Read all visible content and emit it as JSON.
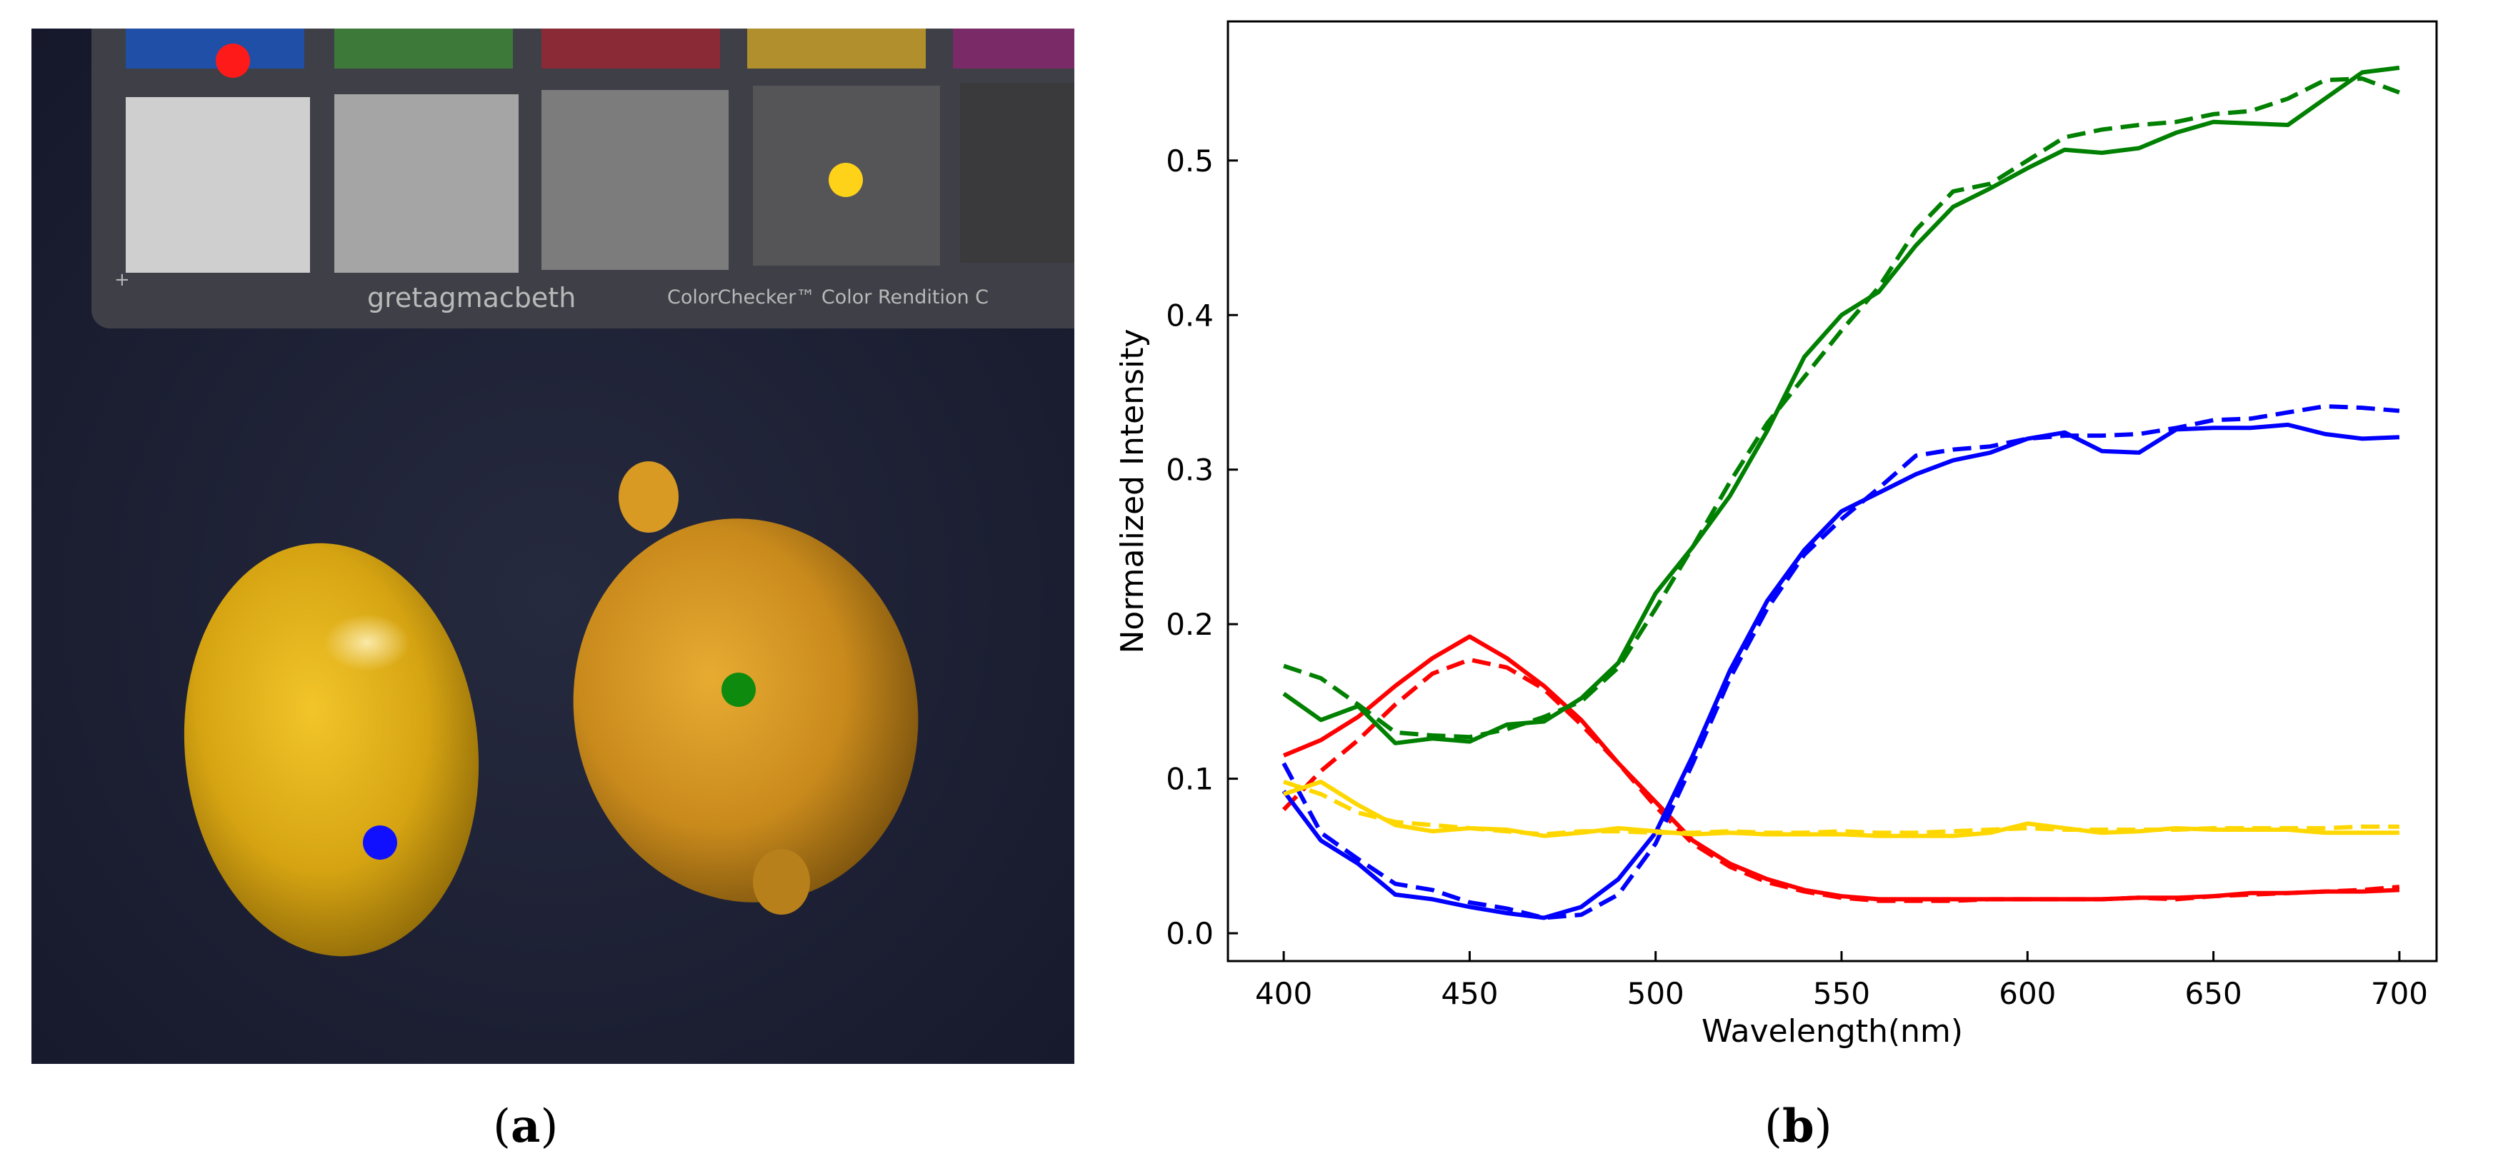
{
  "panels": {
    "a": {
      "caption": "a",
      "chart_brand": "gretagmacbeth",
      "chart_name": "ColorChecker™ Color Rendition C",
      "markers": [
        {
          "name": "red-marker",
          "color": "#ff1a1a"
        },
        {
          "name": "yellow-marker",
          "color": "#ffd21a"
        },
        {
          "name": "blue-marker",
          "color": "#1010ff"
        },
        {
          "name": "green-marker",
          "color": "#0e8a0e"
        }
      ]
    },
    "b": {
      "caption": "b"
    }
  },
  "chart_data": {
    "type": "line",
    "title": "",
    "xlabel": "Wavelength(nm)",
    "ylabel": "Normalized Intensity",
    "xlim": [
      385,
      710
    ],
    "ylim": [
      -0.018,
      0.59
    ],
    "x_ticks": [
      400,
      450,
      500,
      550,
      600,
      650,
      700
    ],
    "y_ticks": [
      0.0,
      0.1,
      0.2,
      0.3,
      0.4,
      0.5
    ],
    "y_tick_labels": [
      "0.0",
      "0.1",
      "0.2",
      "0.3",
      "0.4",
      "0.5"
    ],
    "x": [
      400,
      410,
      420,
      430,
      440,
      450,
      460,
      470,
      480,
      490,
      500,
      510,
      520,
      530,
      540,
      550,
      560,
      570,
      580,
      590,
      600,
      610,
      620,
      630,
      640,
      650,
      660,
      670,
      680,
      690,
      700
    ],
    "series": [
      {
        "name": "red solid",
        "color": "#ff0000",
        "style": "solid",
        "values": [
          0.115,
          0.125,
          0.14,
          0.16,
          0.178,
          0.192,
          0.178,
          0.16,
          0.138,
          0.11,
          0.085,
          0.06,
          0.045,
          0.035,
          0.028,
          0.024,
          0.022,
          0.022,
          0.022,
          0.022,
          0.022,
          0.022,
          0.022,
          0.023,
          0.023,
          0.024,
          0.026,
          0.026,
          0.027,
          0.027,
          0.028
        ]
      },
      {
        "name": "red dashed",
        "color": "#ff0000",
        "style": "dashed",
        "values": [
          0.08,
          0.105,
          0.125,
          0.148,
          0.168,
          0.177,
          0.172,
          0.158,
          0.135,
          0.11,
          0.082,
          0.058,
          0.043,
          0.033,
          0.027,
          0.023,
          0.021,
          0.021,
          0.021,
          0.022,
          0.022,
          0.022,
          0.022,
          0.023,
          0.022,
          0.024,
          0.025,
          0.026,
          0.027,
          0.028,
          0.03
        ]
      },
      {
        "name": "green solid",
        "color": "#008000",
        "style": "solid",
        "values": [
          0.155,
          0.138,
          0.147,
          0.123,
          0.126,
          0.124,
          0.135,
          0.137,
          0.152,
          0.175,
          0.22,
          0.25,
          0.283,
          0.325,
          0.373,
          0.4,
          0.415,
          0.445,
          0.47,
          0.482,
          0.495,
          0.507,
          0.505,
          0.508,
          0.518,
          0.525,
          0.524,
          0.523,
          0.54,
          0.557,
          0.56
        ]
      },
      {
        "name": "green dashed",
        "color": "#008000",
        "style": "dashed",
        "values": [
          0.173,
          0.165,
          0.148,
          0.13,
          0.128,
          0.127,
          0.132,
          0.14,
          0.15,
          0.172,
          0.21,
          0.25,
          0.292,
          0.33,
          0.36,
          0.39,
          0.418,
          0.455,
          0.48,
          0.485,
          0.5,
          0.515,
          0.52,
          0.523,
          0.525,
          0.53,
          0.532,
          0.54,
          0.552,
          0.553,
          0.544
        ]
      },
      {
        "name": "blue solid",
        "color": "#0000ff",
        "style": "solid",
        "values": [
          0.092,
          0.06,
          0.045,
          0.025,
          0.022,
          0.017,
          0.013,
          0.01,
          0.017,
          0.035,
          0.065,
          0.115,
          0.17,
          0.215,
          0.248,
          0.273,
          0.285,
          0.297,
          0.306,
          0.311,
          0.32,
          0.324,
          0.312,
          0.311,
          0.326,
          0.327,
          0.327,
          0.329,
          0.323,
          0.32,
          0.321
        ]
      },
      {
        "name": "blue dashed",
        "color": "#0000ff",
        "style": "dashed",
        "values": [
          0.11,
          0.065,
          0.048,
          0.032,
          0.028,
          0.02,
          0.016,
          0.01,
          0.012,
          0.025,
          0.058,
          0.11,
          0.165,
          0.21,
          0.245,
          0.268,
          0.288,
          0.309,
          0.313,
          0.315,
          0.32,
          0.322,
          0.322,
          0.323,
          0.327,
          0.332,
          0.333,
          0.337,
          0.341,
          0.34,
          0.338
        ]
      },
      {
        "name": "yellow solid",
        "color": "#ffd700",
        "style": "solid",
        "values": [
          0.09,
          0.098,
          0.083,
          0.07,
          0.066,
          0.068,
          0.067,
          0.063,
          0.065,
          0.068,
          0.066,
          0.064,
          0.065,
          0.064,
          0.064,
          0.064,
          0.063,
          0.063,
          0.063,
          0.065,
          0.071,
          0.068,
          0.065,
          0.066,
          0.068,
          0.067,
          0.067,
          0.067,
          0.065,
          0.065,
          0.065
        ]
      },
      {
        "name": "yellow dashed",
        "color": "#ffd700",
        "style": "dashed",
        "values": [
          0.098,
          0.09,
          0.078,
          0.072,
          0.07,
          0.068,
          0.066,
          0.064,
          0.066,
          0.066,
          0.065,
          0.065,
          0.066,
          0.065,
          0.065,
          0.066,
          0.065,
          0.065,
          0.066,
          0.067,
          0.068,
          0.067,
          0.067,
          0.067,
          0.067,
          0.068,
          0.068,
          0.068,
          0.068,
          0.069,
          0.069
        ]
      }
    ]
  }
}
